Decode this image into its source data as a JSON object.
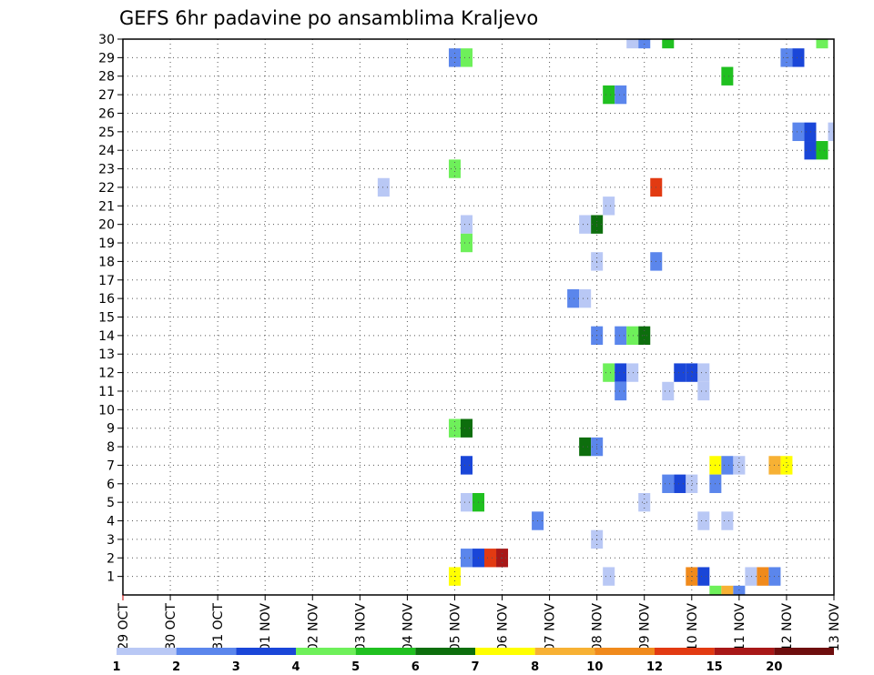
{
  "chart_data": {
    "type": "heatmap",
    "title": "GEFS 6hr padavine po ansamblima Kraljevo",
    "x_tick_labels": [
      "29 OCT",
      "30 OCT",
      "31 OCT",
      "01 NOV",
      "02 NOV",
      "03 NOV",
      "04 NOV",
      "05 NOV",
      "06 NOV",
      "07 NOV",
      "08 NOV",
      "09 NOV",
      "10 NOV",
      "11 NOV",
      "12 NOV",
      "13 NOV"
    ],
    "y_tick_labels": [
      "1",
      "2",
      "3",
      "4",
      "5",
      "6",
      "7",
      "8",
      "9",
      "10",
      "11",
      "12",
      "13",
      "14",
      "15",
      "16",
      "17",
      "18",
      "19",
      "20",
      "21",
      "22",
      "23",
      "24",
      "25",
      "26",
      "27",
      "28",
      "29",
      "30"
    ],
    "xlim_days": [
      0,
      15
    ],
    "ylim_members": [
      0,
      30
    ],
    "grid": true,
    "color_levels": [
      "1",
      "2",
      "3",
      "4",
      "5",
      "6",
      "7",
      "8",
      "10",
      "12",
      "15",
      "20"
    ],
    "colors": [
      "#b9c8f5",
      "#5b86ec",
      "#1a46d8",
      "#6ef05a",
      "#20c020",
      "#0d6e0d",
      "#ffff00",
      "#f7b134",
      "#f08a1c",
      "#e23a12",
      "#a81818",
      "#6e0e0e"
    ],
    "note_x_units": "days after 29 OCT 00Z, 6-hour steps (0.25 day)",
    "cells": [
      {
        "m": 30,
        "x": 10.75,
        "c": 1
      },
      {
        "m": 30,
        "x": 11.0,
        "c": 2
      },
      {
        "m": 30,
        "x": 11.5,
        "c": 5
      },
      {
        "m": 30,
        "x": 14.75,
        "c": 4
      },
      {
        "m": 29,
        "x": 7.0,
        "c": 2
      },
      {
        "m": 29,
        "x": 7.25,
        "c": 4
      },
      {
        "m": 29,
        "x": 14.0,
        "c": 2
      },
      {
        "m": 29,
        "x": 14.25,
        "c": 3
      },
      {
        "m": 28,
        "x": 12.75,
        "c": 5
      },
      {
        "m": 27,
        "x": 10.25,
        "c": 5
      },
      {
        "m": 27,
        "x": 10.5,
        "c": 2
      },
      {
        "m": 25,
        "x": 14.25,
        "c": 2
      },
      {
        "m": 25,
        "x": 14.5,
        "c": 3
      },
      {
        "m": 25,
        "x": 15.0,
        "c": 1
      },
      {
        "m": 24,
        "x": 14.5,
        "c": 3
      },
      {
        "m": 24,
        "x": 14.75,
        "c": 5
      },
      {
        "m": 23,
        "x": 7.0,
        "c": 4
      },
      {
        "m": 22,
        "x": 5.5,
        "c": 1
      },
      {
        "m": 22,
        "x": 11.25,
        "c": 10
      },
      {
        "m": 21,
        "x": 10.25,
        "c": 1
      },
      {
        "m": 20,
        "x": 7.25,
        "c": 1
      },
      {
        "m": 20,
        "x": 9.75,
        "c": 1
      },
      {
        "m": 20,
        "x": 10.0,
        "c": 6
      },
      {
        "m": 19,
        "x": 7.25,
        "c": 4
      },
      {
        "m": 18,
        "x": 10.0,
        "c": 1
      },
      {
        "m": 18,
        "x": 11.25,
        "c": 2
      },
      {
        "m": 16,
        "x": 9.5,
        "c": 2
      },
      {
        "m": 16,
        "x": 9.75,
        "c": 1
      },
      {
        "m": 14,
        "x": 10.0,
        "c": 2
      },
      {
        "m": 14,
        "x": 10.5,
        "c": 2
      },
      {
        "m": 14,
        "x": 10.75,
        "c": 4
      },
      {
        "m": 14,
        "x": 11.0,
        "c": 6
      },
      {
        "m": 12,
        "x": 10.25,
        "c": 4
      },
      {
        "m": 12,
        "x": 10.5,
        "c": 3
      },
      {
        "m": 12,
        "x": 10.75,
        "c": 1
      },
      {
        "m": 12,
        "x": 11.75,
        "c": 3
      },
      {
        "m": 12,
        "x": 12.0,
        "c": 3
      },
      {
        "m": 12,
        "x": 12.25,
        "c": 1
      },
      {
        "m": 11,
        "x": 10.5,
        "c": 2
      },
      {
        "m": 11,
        "x": 11.5,
        "c": 1
      },
      {
        "m": 11,
        "x": 12.25,
        "c": 1
      },
      {
        "m": 9,
        "x": 7.0,
        "c": 4
      },
      {
        "m": 9,
        "x": 7.25,
        "c": 6
      },
      {
        "m": 8,
        "x": 9.75,
        "c": 6
      },
      {
        "m": 8,
        "x": 10.0,
        "c": 2
      },
      {
        "m": 7,
        "x": 7.25,
        "c": 3
      },
      {
        "m": 7,
        "x": 12.5,
        "c": 7
      },
      {
        "m": 7,
        "x": 12.75,
        "c": 2
      },
      {
        "m": 7,
        "x": 13.0,
        "c": 1
      },
      {
        "m": 7,
        "x": 13.75,
        "c": 8
      },
      {
        "m": 7,
        "x": 14.0,
        "c": 7
      },
      {
        "m": 6,
        "x": 11.5,
        "c": 2
      },
      {
        "m": 6,
        "x": 11.75,
        "c": 3
      },
      {
        "m": 6,
        "x": 12.0,
        "c": 1
      },
      {
        "m": 6,
        "x": 12.5,
        "c": 2
      },
      {
        "m": 5,
        "x": 7.25,
        "c": 1
      },
      {
        "m": 5,
        "x": 7.5,
        "c": 5
      },
      {
        "m": 5,
        "x": 11.0,
        "c": 1
      },
      {
        "m": 4,
        "x": 8.75,
        "c": 2
      },
      {
        "m": 4,
        "x": 12.25,
        "c": 1
      },
      {
        "m": 4,
        "x": 12.75,
        "c": 1
      },
      {
        "m": 3,
        "x": 10.0,
        "c": 1
      },
      {
        "m": 2,
        "x": 7.25,
        "c": 2
      },
      {
        "m": 2,
        "x": 7.5,
        "c": 3
      },
      {
        "m": 2,
        "x": 7.75,
        "c": 10
      },
      {
        "m": 2,
        "x": 8.0,
        "c": 11
      },
      {
        "m": 1,
        "x": 7.0,
        "c": 7
      },
      {
        "m": 1,
        "x": 10.25,
        "c": 1
      },
      {
        "m": 1,
        "x": 12.0,
        "c": 9
      },
      {
        "m": 1,
        "x": 12.25,
        "c": 3
      },
      {
        "m": 1,
        "x": 13.25,
        "c": 1
      },
      {
        "m": 1,
        "x": 13.5,
        "c": 9
      },
      {
        "m": 1,
        "x": 13.75,
        "c": 2
      },
      {
        "m": 0,
        "x": 12.5,
        "c": 4
      },
      {
        "m": 0,
        "x": 12.75,
        "c": 8
      },
      {
        "m": 0,
        "x": 13.0,
        "c": 2
      }
    ]
  }
}
